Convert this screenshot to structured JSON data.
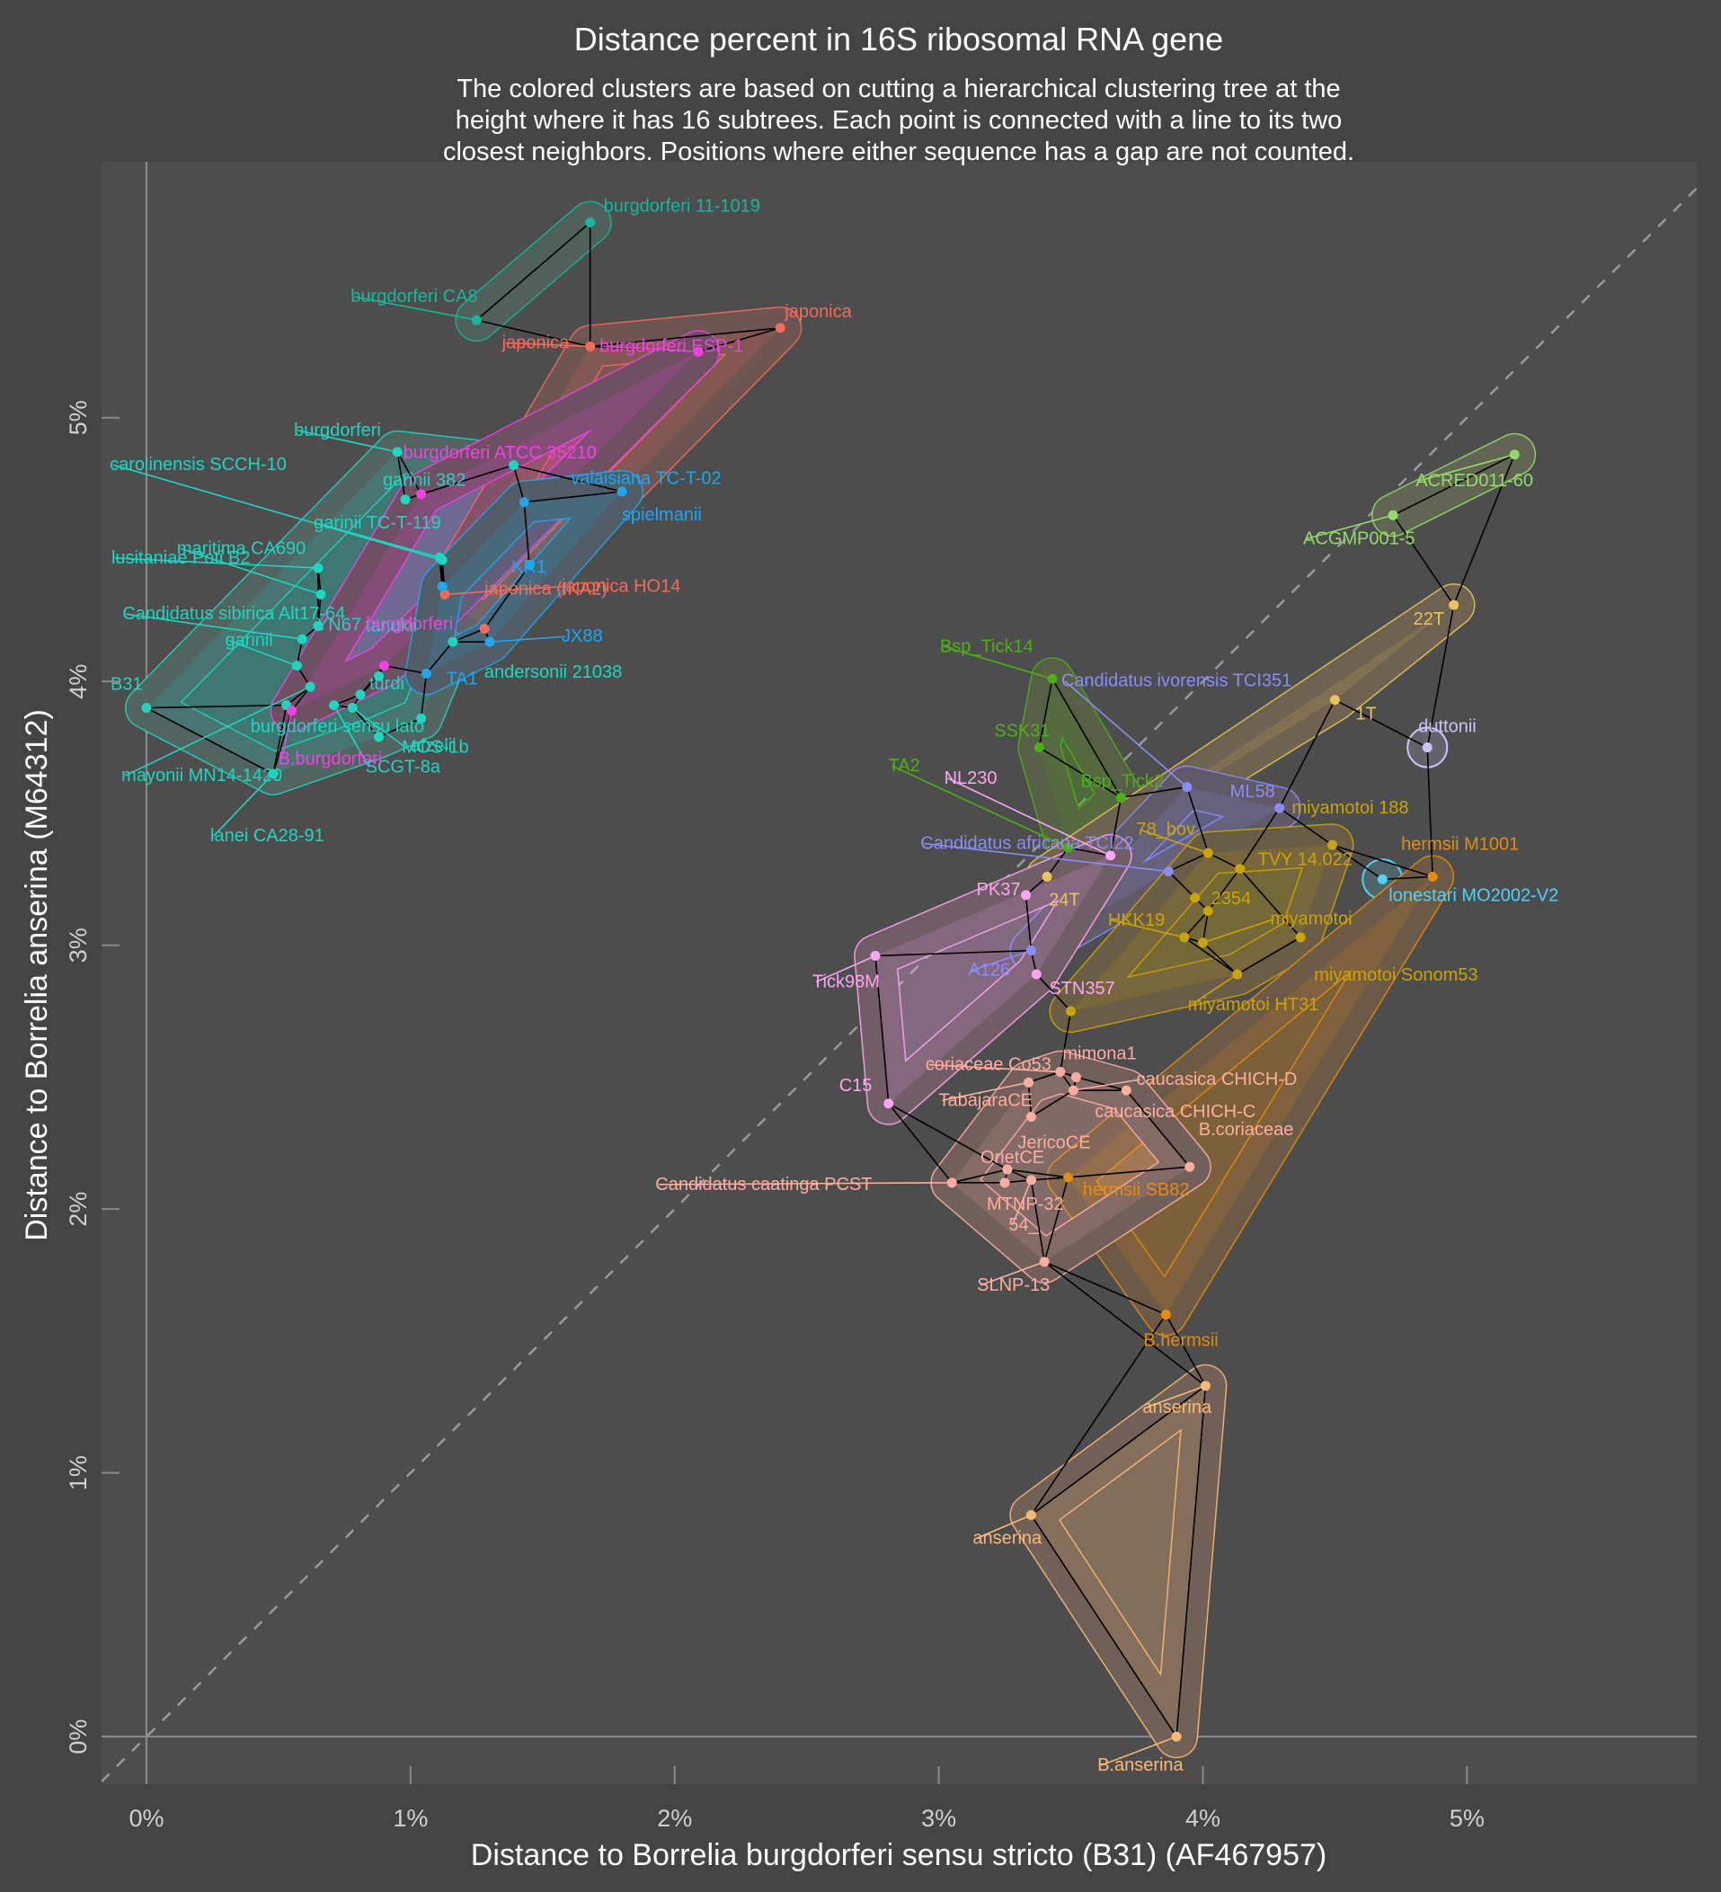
{
  "chart_data": {
    "type": "scatter",
    "title": "Distance percent in 16S ribosomal RNA gene",
    "subtitle": [
      "The colored clusters are based on cutting a hierarchical clustering tree at the",
      "height where it has 16 subtrees. Each point is connected with a line to its two",
      "closest neighbors. Positions where either sequence has a gap are not counted."
    ],
    "xlabel": "Distance to Borrelia burgdorferi sensu stricto (B31) (AF467957)",
    "ylabel": "Distance to Borrelia anserina (M64312)",
    "xlim": [
      -0.17,
      5.87
    ],
    "ylim": [
      -0.18,
      5.97
    ],
    "x_ticks": [
      0,
      1,
      2,
      3,
      4,
      5
    ],
    "y_ticks": [
      0,
      1,
      2,
      3,
      4,
      5
    ],
    "x_tick_labels": [
      "0%",
      "1%",
      "2%",
      "3%",
      "4%",
      "5%"
    ],
    "y_tick_labels": [
      "0%",
      "1%",
      "2%",
      "3%",
      "4%",
      "5%"
    ],
    "reference_line": "y = x (dashed)",
    "grid": false,
    "legend": "none",
    "colors": {
      "background": "#444444",
      "panel": "#4d4d4d",
      "zero_lines": "#8a8a8a",
      "edges": "#000000"
    },
    "clusters": [
      {
        "id": "c_ll",
        "color": "#1ed6c0"
      },
      {
        "id": "c_b11",
        "color": "#14b89a"
      },
      {
        "id": "c_jap",
        "color": "#f26b5b"
      },
      {
        "id": "c_mag",
        "color": "#ee44dd"
      },
      {
        "id": "c_blu",
        "color": "#1ea6ef"
      },
      {
        "id": "c_acr",
        "color": "#92da6a"
      },
      {
        "id": "c_tick",
        "color": "#4caf14"
      },
      {
        "id": "c_yel",
        "color": "#e8c45a"
      },
      {
        "id": "c_dut",
        "color": "#c9c4f5"
      },
      {
        "id": "c_lon",
        "color": "#4fd2f6"
      },
      {
        "id": "c_cand",
        "color": "#8a8cf7"
      },
      {
        "id": "c_pink",
        "color": "#fba6f1"
      },
      {
        "id": "c_miy",
        "color": "#c9a406"
      },
      {
        "id": "c_her",
        "color": "#e28d0e"
      },
      {
        "id": "c_sal",
        "color": "#fbaea0"
      },
      {
        "id": "c_ans",
        "color": "#f9b978"
      }
    ],
    "points": [
      {
        "label": "B31",
        "x": 0.0,
        "y": 3.9,
        "cluster": "c_ll",
        "la": "lt"
      },
      {
        "label": "burgdorferi sensu lato",
        "x": 0.53,
        "y": 3.91,
        "cluster": "c_ll",
        "la": "bl"
      },
      {
        "label": "garinii",
        "x": 0.57,
        "y": 4.06,
        "cluster": "c_ll",
        "la": "gl"
      },
      {
        "label": "Candidatus sibirica Alt17-64",
        "x": 0.59,
        "y": 4.16,
        "cluster": "c_ll",
        "la": "cs"
      },
      {
        "label": "lusitaniae Poti B2",
        "x": 0.65,
        "y": 4.43,
        "cluster": "c_ll",
        "la": "lu"
      },
      {
        "label": "maritima CA690",
        "x": 0.66,
        "y": 4.33,
        "cluster": "c_ll",
        "la": "ma"
      },
      {
        "label": "carolinensis SCCH-10",
        "x": 1.12,
        "y": 4.46,
        "cluster": "c_ll",
        "la": "ca"
      },
      {
        "label": "garinii TC-T-119",
        "x": 1.11,
        "y": 4.47,
        "cluster": "c_ll",
        "la": "gt"
      },
      {
        "label": "YN67",
        "x": 0.65,
        "y": 4.21,
        "cluster": "c_ll",
        "la": "yn"
      },
      {
        "label": "mayonii MN14-1420",
        "x": 0.62,
        "y": 3.98,
        "cluster": "c_ll",
        "la": "my"
      },
      {
        "label": "lanei CA28-91",
        "x": 0.48,
        "y": 3.65,
        "cluster": "c_ll",
        "la": "la"
      },
      {
        "label": "SCGT-8a",
        "x": 0.71,
        "y": 3.91,
        "cluster": "c_ll",
        "la": "sc"
      },
      {
        "label": "MOS-1b",
        "x": 0.78,
        "y": 3.9,
        "cluster": "c_ll",
        "la": "mo"
      },
      {
        "label": "turdi",
        "x": 0.81,
        "y": 3.95,
        "cluster": "c_ll",
        "la": "tu"
      },
      {
        "label": "tanukii",
        "x": 0.88,
        "y": 4.02,
        "cluster": "c_ll",
        "la": "ta"
      },
      {
        "label": "afzelii",
        "x": 0.88,
        "y": 3.79,
        "cluster": "c_ll",
        "la": "af"
      },
      {
        "label": "andersonii 21038",
        "x": 1.16,
        "y": 4.15,
        "cluster": "c_ll",
        "la": "an"
      },
      {
        "label": "burgdorferi",
        "x": 0.95,
        "y": 4.87,
        "cluster": "c_ll",
        "la": "bu"
      },
      {
        "label": "garinii 382",
        "x": 0.98,
        "y": 4.69,
        "cluster": "c_ll",
        "la": "g3"
      },
      {
        "label": "",
        "x": 1.04,
        "y": 3.86,
        "cluster": "c_ll",
        "la": "none"
      },
      {
        "label": "",
        "x": 1.39,
        "y": 4.82,
        "cluster": "c_ll",
        "la": "none"
      },
      {
        "label": "burgdorferi CA8",
        "x": 1.25,
        "y": 5.37,
        "cluster": "c_b11",
        "la": "c8"
      },
      {
        "label": "burgdorferi 11-1019",
        "x": 1.68,
        "y": 5.74,
        "cluster": "c_b11",
        "la": "b11"
      },
      {
        "label": "japonica",
        "x": 1.68,
        "y": 5.27,
        "cluster": "c_jap",
        "la": "j1"
      },
      {
        "label": "japonica",
        "x": 2.4,
        "y": 5.34,
        "cluster": "c_jap",
        "la": "j2"
      },
      {
        "label": "japonica HO14",
        "x": 1.13,
        "y": 4.33,
        "cluster": "c_jap",
        "la": "jh"
      },
      {
        "label": "japonica (IKA2)",
        "x": 1.28,
        "y": 4.2,
        "cluster": "c_jap",
        "la": "ji"
      },
      {
        "label": "burgdorferi ESP-1",
        "x": 2.09,
        "y": 5.25,
        "cluster": "c_mag",
        "la": "es"
      },
      {
        "label": "burgdorferi ATCC 35210",
        "x": 1.04,
        "y": 4.71,
        "cluster": "c_mag",
        "la": "at"
      },
      {
        "label": "burgdorferi",
        "x": 0.9,
        "y": 4.06,
        "cluster": "c_mag",
        "la": "bm"
      },
      {
        "label": "B.burgdorferi",
        "x": 0.55,
        "y": 3.89,
        "cluster": "c_mag",
        "la": "bb"
      },
      {
        "label": "valaisiana TC-T-02",
        "x": 1.43,
        "y": 4.68,
        "cluster": "c_blu",
        "la": "va"
      },
      {
        "label": "spielmanii",
        "x": 1.8,
        "y": 4.72,
        "cluster": "c_blu",
        "la": "sp"
      },
      {
        "label": "KR1",
        "x": 1.45,
        "y": 4.44,
        "cluster": "c_blu",
        "la": "kr"
      },
      {
        "label": "JX88",
        "x": 1.3,
        "y": 4.15,
        "cluster": "c_blu",
        "la": "jx"
      },
      {
        "label": "TA1",
        "x": 1.06,
        "y": 4.03,
        "cluster": "c_blu",
        "la": "t1"
      },
      {
        "label": "",
        "x": 1.12,
        "y": 4.36,
        "cluster": "c_blu",
        "la": "none"
      },
      {
        "label": "ACRED011-60",
        "x": 5.18,
        "y": 4.86,
        "cluster": "c_acr",
        "la": "ac"
      },
      {
        "label": "ACGMP001-5",
        "x": 4.72,
        "y": 4.63,
        "cluster": "c_acr",
        "la": "ag"
      },
      {
        "label": "Bsp_Tick14",
        "x": 3.43,
        "y": 4.01,
        "cluster": "c_tick",
        "la": "b14"
      },
      {
        "label": "SSK31",
        "x": 3.38,
        "y": 3.75,
        "cluster": "c_tick",
        "la": "ss"
      },
      {
        "label": "Bsp_Tick2",
        "x": 3.69,
        "y": 3.56,
        "cluster": "c_tick",
        "la": "b2"
      },
      {
        "label": "TA2",
        "x": 3.49,
        "y": 3.37,
        "cluster": "c_tick",
        "la": "t2"
      },
      {
        "label": "22T",
        "x": 4.95,
        "y": 4.29,
        "cluster": "c_yel",
        "la": "22"
      },
      {
        "label": "1T",
        "x": 4.5,
        "y": 3.93,
        "cluster": "c_yel",
        "la": "1t"
      },
      {
        "label": "24T",
        "x": 3.41,
        "y": 3.26,
        "cluster": "c_yel",
        "la": "24"
      },
      {
        "label": "duttonii",
        "x": 4.85,
        "y": 3.75,
        "cluster": "c_dut",
        "la": "du"
      },
      {
        "label": "lonestari MO2002-V2",
        "x": 4.68,
        "y": 3.25,
        "cluster": "c_lon",
        "la": "lo"
      },
      {
        "label": "Candidatus ivorensis TCI351",
        "x": 3.94,
        "y": 3.6,
        "cluster": "c_cand",
        "la": "iv"
      },
      {
        "label": "ML58",
        "x": 4.29,
        "y": 3.52,
        "cluster": "c_cand",
        "la": "ml"
      },
      {
        "label": "Candidatus africana TCI22",
        "x": 3.87,
        "y": 3.28,
        "cluster": "c_cand",
        "la": "af2"
      },
      {
        "label": "A126",
        "x": 3.35,
        "y": 2.98,
        "cluster": "c_cand",
        "la": "a1"
      },
      {
        "label": "NL230",
        "x": 3.65,
        "y": 3.34,
        "cluster": "c_pink",
        "la": "nl"
      },
      {
        "label": "PK37",
        "x": 3.33,
        "y": 3.19,
        "cluster": "c_pink",
        "la": "pk"
      },
      {
        "label": "Tick98M",
        "x": 2.76,
        "y": 2.96,
        "cluster": "c_pink",
        "la": "tk"
      },
      {
        "label": "STN357",
        "x": 3.37,
        "y": 2.89,
        "cluster": "c_pink",
        "la": "st"
      },
      {
        "label": "C15",
        "x": 2.81,
        "y": 2.4,
        "cluster": "c_pink",
        "la": "c15"
      },
      {
        "label": "miyamotoi 188",
        "x": 4.49,
        "y": 3.38,
        "cluster": "c_miy",
        "la": "m188"
      },
      {
        "label": "78_bov",
        "x": 4.02,
        "y": 3.35,
        "cluster": "c_miy",
        "la": "bov"
      },
      {
        "label": "TVY 14.022",
        "x": 4.14,
        "y": 3.29,
        "cluster": "c_miy",
        "la": "tvy"
      },
      {
        "label": "2354",
        "x": 3.97,
        "y": 3.18,
        "cluster": "c_miy",
        "la": "23"
      },
      {
        "label": "",
        "x": 4.02,
        "y": 3.13,
        "cluster": "c_miy",
        "la": "none"
      },
      {
        "label": "HKK19",
        "x": 3.93,
        "y": 3.03,
        "cluster": "c_miy",
        "la": "hk"
      },
      {
        "label": "miyamotoi",
        "x": 4.0,
        "y": 3.01,
        "cluster": "c_miy",
        "la": "mi"
      },
      {
        "label": "miyamotoi Sonom53",
        "x": 4.37,
        "y": 3.03,
        "cluster": "c_miy",
        "la": "so"
      },
      {
        "label": "miyamotoi HT31",
        "x": 4.13,
        "y": 2.89,
        "cluster": "c_miy",
        "la": "ht"
      },
      {
        "label": "",
        "x": 3.5,
        "y": 2.75,
        "cluster": "c_miy",
        "la": "none"
      },
      {
        "label": "hermsii M1001",
        "x": 4.87,
        "y": 3.26,
        "cluster": "c_her",
        "la": "hm"
      },
      {
        "label": "hermsii SB82",
        "x": 3.49,
        "y": 2.12,
        "cluster": "c_her",
        "la": "hs"
      },
      {
        "label": "B.hermsii",
        "x": 3.86,
        "y": 1.6,
        "cluster": "c_her",
        "la": "bh"
      },
      {
        "label": "coriaceae Co53",
        "x": 3.46,
        "y": 2.52,
        "cluster": "c_sal",
        "la": "co"
      },
      {
        "label": "mimona1",
        "x": 3.52,
        "y": 2.5,
        "cluster": "c_sal",
        "la": "mn"
      },
      {
        "label": "caucasica CHICH-D",
        "x": 3.51,
        "y": 2.45,
        "cluster": "c_sal",
        "la": "cd"
      },
      {
        "label": "caucasica CHICH-C",
        "x": 3.71,
        "y": 2.45,
        "cluster": "c_sal",
        "la": "cc"
      },
      {
        "label": "TabajaraCE",
        "x": 3.34,
        "y": 2.48,
        "cluster": "c_sal",
        "la": "tb"
      },
      {
        "label": "JericoCE",
        "x": 3.35,
        "y": 2.35,
        "cluster": "c_sal",
        "la": "je"
      },
      {
        "label": "OrietCE",
        "x": 3.26,
        "y": 2.15,
        "cluster": "c_sal",
        "la": "or"
      },
      {
        "label": "Candidatus caatinga PCST",
        "x": 3.05,
        "y": 2.1,
        "cluster": "c_sal",
        "la": "pc"
      },
      {
        "label": "MTNP-32",
        "x": 3.25,
        "y": 2.1,
        "cluster": "c_sal",
        "la": "mt"
      },
      {
        "label": "54_",
        "x": 3.35,
        "y": 2.11,
        "cluster": "c_sal",
        "la": "54"
      },
      {
        "label": "B.coriaceae",
        "x": 3.95,
        "y": 2.16,
        "cluster": "c_sal",
        "la": "bc"
      },
      {
        "label": "SLNP-13",
        "x": 3.4,
        "y": 1.8,
        "cluster": "c_sal",
        "la": "sl"
      },
      {
        "label": "anserina",
        "x": 4.01,
        "y": 1.33,
        "cluster": "c_ans",
        "la": "a_hi"
      },
      {
        "label": "anserina",
        "x": 3.35,
        "y": 0.84,
        "cluster": "c_ans",
        "la": "a_lo"
      },
      {
        "label": "B.anserina",
        "x": 3.9,
        "y": 0.0,
        "cluster": "c_ans",
        "la": "ba"
      }
    ]
  }
}
